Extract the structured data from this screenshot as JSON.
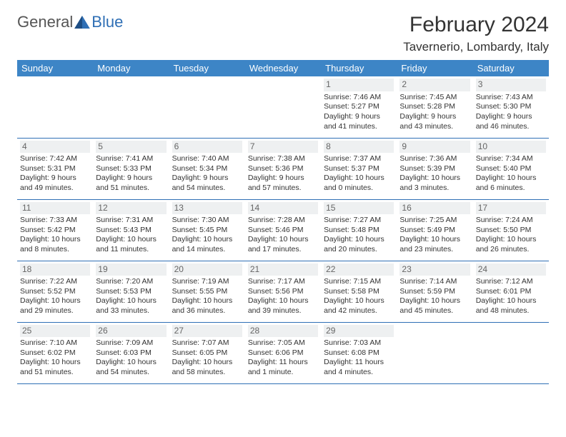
{
  "brand": {
    "general": "General",
    "blue": "Blue"
  },
  "title": "February 2024",
  "location": "Tavernerio, Lombardy, Italy",
  "colors": {
    "header_bg": "#3d85c6",
    "header_text": "#ffffff",
    "border": "#2f6fb5",
    "daynum_bg": "#eef0f1",
    "daynum_text": "#666666",
    "text": "#333333",
    "logo_gray": "#555555",
    "logo_blue": "#2f6fb5"
  },
  "weekdays": [
    "Sunday",
    "Monday",
    "Tuesday",
    "Wednesday",
    "Thursday",
    "Friday",
    "Saturday"
  ],
  "weeks": [
    [
      null,
      null,
      null,
      null,
      {
        "n": "1",
        "sr": "Sunrise: 7:46 AM",
        "ss": "Sunset: 5:27 PM",
        "dl": "Daylight: 9 hours and 41 minutes."
      },
      {
        "n": "2",
        "sr": "Sunrise: 7:45 AM",
        "ss": "Sunset: 5:28 PM",
        "dl": "Daylight: 9 hours and 43 minutes."
      },
      {
        "n": "3",
        "sr": "Sunrise: 7:43 AM",
        "ss": "Sunset: 5:30 PM",
        "dl": "Daylight: 9 hours and 46 minutes."
      }
    ],
    [
      {
        "n": "4",
        "sr": "Sunrise: 7:42 AM",
        "ss": "Sunset: 5:31 PM",
        "dl": "Daylight: 9 hours and 49 minutes."
      },
      {
        "n": "5",
        "sr": "Sunrise: 7:41 AM",
        "ss": "Sunset: 5:33 PM",
        "dl": "Daylight: 9 hours and 51 minutes."
      },
      {
        "n": "6",
        "sr": "Sunrise: 7:40 AM",
        "ss": "Sunset: 5:34 PM",
        "dl": "Daylight: 9 hours and 54 minutes."
      },
      {
        "n": "7",
        "sr": "Sunrise: 7:38 AM",
        "ss": "Sunset: 5:36 PM",
        "dl": "Daylight: 9 hours and 57 minutes."
      },
      {
        "n": "8",
        "sr": "Sunrise: 7:37 AM",
        "ss": "Sunset: 5:37 PM",
        "dl": "Daylight: 10 hours and 0 minutes."
      },
      {
        "n": "9",
        "sr": "Sunrise: 7:36 AM",
        "ss": "Sunset: 5:39 PM",
        "dl": "Daylight: 10 hours and 3 minutes."
      },
      {
        "n": "10",
        "sr": "Sunrise: 7:34 AM",
        "ss": "Sunset: 5:40 PM",
        "dl": "Daylight: 10 hours and 6 minutes."
      }
    ],
    [
      {
        "n": "11",
        "sr": "Sunrise: 7:33 AM",
        "ss": "Sunset: 5:42 PM",
        "dl": "Daylight: 10 hours and 8 minutes."
      },
      {
        "n": "12",
        "sr": "Sunrise: 7:31 AM",
        "ss": "Sunset: 5:43 PM",
        "dl": "Daylight: 10 hours and 11 minutes."
      },
      {
        "n": "13",
        "sr": "Sunrise: 7:30 AM",
        "ss": "Sunset: 5:45 PM",
        "dl": "Daylight: 10 hours and 14 minutes."
      },
      {
        "n": "14",
        "sr": "Sunrise: 7:28 AM",
        "ss": "Sunset: 5:46 PM",
        "dl": "Daylight: 10 hours and 17 minutes."
      },
      {
        "n": "15",
        "sr": "Sunrise: 7:27 AM",
        "ss": "Sunset: 5:48 PM",
        "dl": "Daylight: 10 hours and 20 minutes."
      },
      {
        "n": "16",
        "sr": "Sunrise: 7:25 AM",
        "ss": "Sunset: 5:49 PM",
        "dl": "Daylight: 10 hours and 23 minutes."
      },
      {
        "n": "17",
        "sr": "Sunrise: 7:24 AM",
        "ss": "Sunset: 5:50 PM",
        "dl": "Daylight: 10 hours and 26 minutes."
      }
    ],
    [
      {
        "n": "18",
        "sr": "Sunrise: 7:22 AM",
        "ss": "Sunset: 5:52 PM",
        "dl": "Daylight: 10 hours and 29 minutes."
      },
      {
        "n": "19",
        "sr": "Sunrise: 7:20 AM",
        "ss": "Sunset: 5:53 PM",
        "dl": "Daylight: 10 hours and 33 minutes."
      },
      {
        "n": "20",
        "sr": "Sunrise: 7:19 AM",
        "ss": "Sunset: 5:55 PM",
        "dl": "Daylight: 10 hours and 36 minutes."
      },
      {
        "n": "21",
        "sr": "Sunrise: 7:17 AM",
        "ss": "Sunset: 5:56 PM",
        "dl": "Daylight: 10 hours and 39 minutes."
      },
      {
        "n": "22",
        "sr": "Sunrise: 7:15 AM",
        "ss": "Sunset: 5:58 PM",
        "dl": "Daylight: 10 hours and 42 minutes."
      },
      {
        "n": "23",
        "sr": "Sunrise: 7:14 AM",
        "ss": "Sunset: 5:59 PM",
        "dl": "Daylight: 10 hours and 45 minutes."
      },
      {
        "n": "24",
        "sr": "Sunrise: 7:12 AM",
        "ss": "Sunset: 6:01 PM",
        "dl": "Daylight: 10 hours and 48 minutes."
      }
    ],
    [
      {
        "n": "25",
        "sr": "Sunrise: 7:10 AM",
        "ss": "Sunset: 6:02 PM",
        "dl": "Daylight: 10 hours and 51 minutes."
      },
      {
        "n": "26",
        "sr": "Sunrise: 7:09 AM",
        "ss": "Sunset: 6:03 PM",
        "dl": "Daylight: 10 hours and 54 minutes."
      },
      {
        "n": "27",
        "sr": "Sunrise: 7:07 AM",
        "ss": "Sunset: 6:05 PM",
        "dl": "Daylight: 10 hours and 58 minutes."
      },
      {
        "n": "28",
        "sr": "Sunrise: 7:05 AM",
        "ss": "Sunset: 6:06 PM",
        "dl": "Daylight: 11 hours and 1 minute."
      },
      {
        "n": "29",
        "sr": "Sunrise: 7:03 AM",
        "ss": "Sunset: 6:08 PM",
        "dl": "Daylight: 11 hours and 4 minutes."
      },
      null,
      null
    ]
  ]
}
